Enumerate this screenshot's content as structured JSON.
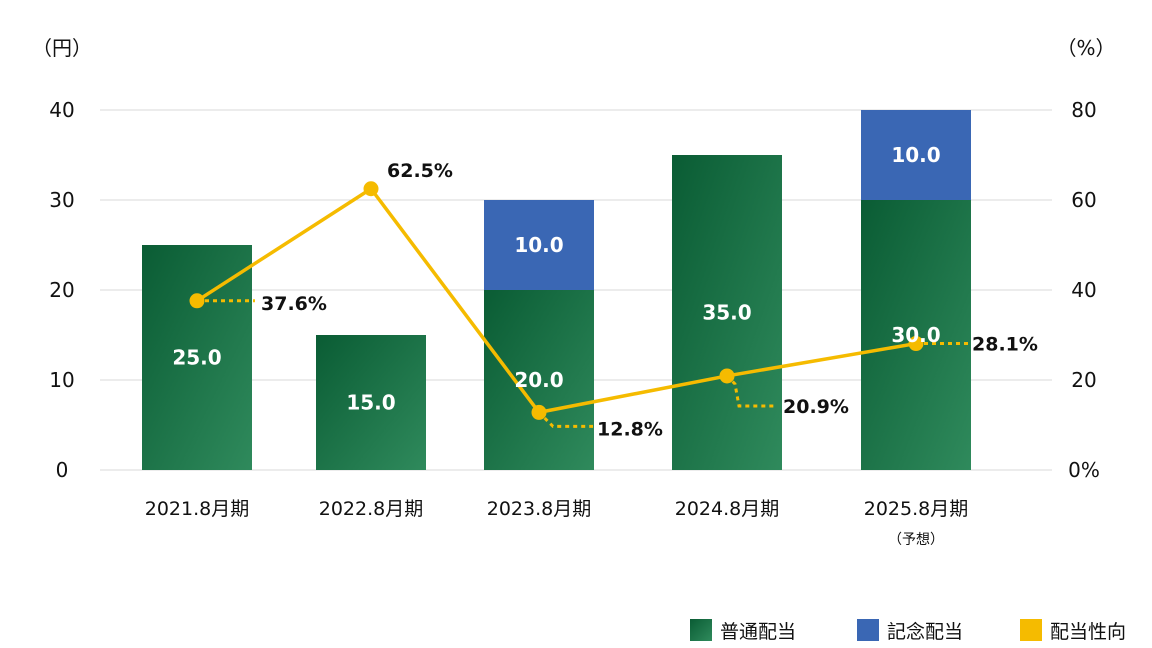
{
  "chart_data": {
    "type": "bar",
    "stacked": true,
    "categories": [
      "2021.8月期",
      "2022.8月期",
      "2023.8月期",
      "2024.8月期",
      "2025.8月期"
    ],
    "category_notes": [
      "",
      "",
      "",
      "",
      "（予想）"
    ],
    "y_left_unit": "（円）",
    "y_right_unit": "（%）",
    "y_left_ticks": [
      "0",
      "10",
      "20",
      "30",
      "40"
    ],
    "y_right_ticks": [
      "0%",
      "20",
      "40",
      "60",
      "80"
    ],
    "ylim_left": [
      0,
      40
    ],
    "ylim_right": [
      0,
      80
    ],
    "grid": true,
    "legend_position": "bottom-right",
    "series": [
      {
        "name": "普通配当",
        "type": "bar",
        "axis": "left",
        "values": [
          25.0,
          15.0,
          20.0,
          35.0,
          30.0
        ],
        "labels": [
          "25.0",
          "15.0",
          "20.0",
          "35.0",
          "30.0"
        ],
        "color": "#17744a"
      },
      {
        "name": "記念配当",
        "type": "bar",
        "axis": "left",
        "values": [
          0,
          0,
          10.0,
          0,
          10.0
        ],
        "labels": [
          "",
          "",
          "10.0",
          "",
          "10.0"
        ],
        "color": "#3a67b4"
      },
      {
        "name": "配当性向",
        "type": "line",
        "axis": "right",
        "values": [
          37.6,
          62.5,
          12.8,
          20.9,
          28.1
        ],
        "labels": [
          "37.6%",
          "62.5%",
          "12.8%",
          "20.9%",
          "28.1%"
        ],
        "color": "#f5bb00"
      }
    ]
  }
}
